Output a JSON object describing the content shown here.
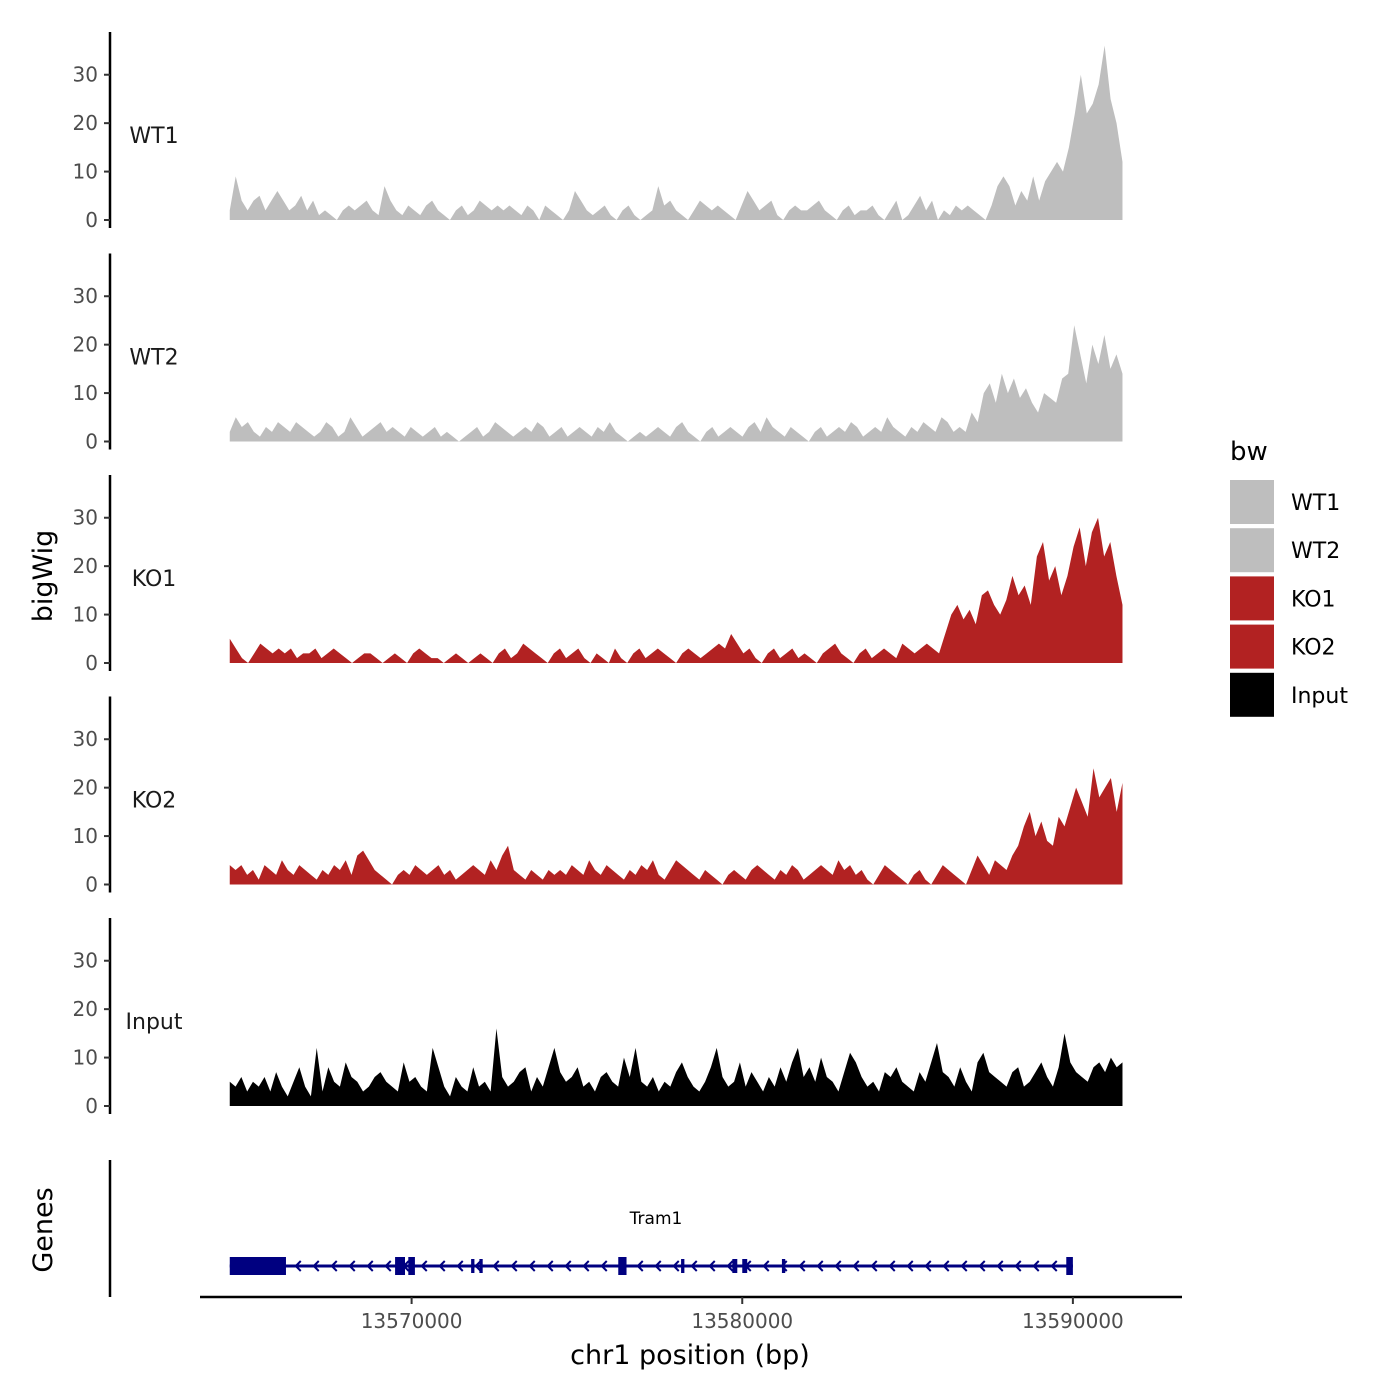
{
  "chart_data": {
    "type": "area",
    "ylabel": "bigWig",
    "xlabel": "chr1 position (bp)",
    "x_range": [
      13564500,
      13591500
    ],
    "xlim": [
      13563600,
      13593300
    ],
    "x_ticks": [
      13570000,
      13580000,
      13590000
    ],
    "x_tick_labels": [
      "13570000",
      "13580000",
      "13590000"
    ],
    "ylim": [
      0,
      38
    ],
    "y_ticks": [
      0,
      10,
      20,
      30
    ],
    "y_tick_labels": [
      "0",
      "10",
      "20",
      "30"
    ],
    "tracks": [
      {
        "name": "WT1",
        "color": "#bebebe",
        "values": [
          2,
          9,
          4,
          2,
          4,
          5,
          2,
          4,
          6,
          4,
          2,
          3,
          5,
          2,
          4,
          1,
          2,
          1,
          0,
          2,
          3,
          2,
          3,
          4,
          2,
          1,
          7,
          4,
          2,
          1,
          3,
          2,
          1,
          3,
          4,
          2,
          1,
          0,
          2,
          3,
          1,
          2,
          4,
          3,
          2,
          3,
          2,
          3,
          2,
          1,
          3,
          2,
          0,
          3,
          2,
          1,
          0,
          2,
          6,
          4,
          2,
          1,
          2,
          3,
          1,
          0,
          2,
          3,
          1,
          0,
          1,
          2,
          7,
          3,
          4,
          2,
          1,
          0,
          2,
          4,
          3,
          2,
          3,
          2,
          1,
          0,
          3,
          6,
          4,
          2,
          3,
          4,
          1,
          0,
          2,
          3,
          2,
          2,
          3,
          4,
          2,
          1,
          0,
          2,
          3,
          1,
          2,
          2,
          3,
          1,
          0,
          2,
          4,
          0,
          1,
          3,
          5,
          2,
          4,
          0,
          2,
          1,
          3,
          2,
          3,
          2,
          1,
          0,
          3,
          7,
          9,
          7,
          3,
          6,
          4,
          9,
          4,
          8,
          10,
          12,
          10,
          15,
          22,
          30,
          22,
          24,
          28,
          36,
          25,
          20,
          12
        ]
      },
      {
        "name": "WT2",
        "color": "#bebebe",
        "values": [
          2,
          5,
          3,
          4,
          2,
          1,
          3,
          2,
          4,
          3,
          2,
          4,
          3,
          2,
          1,
          2,
          4,
          3,
          1,
          2,
          5,
          3,
          1,
          2,
          3,
          4,
          2,
          3,
          2,
          1,
          3,
          2,
          1,
          2,
          3,
          1,
          2,
          1,
          0,
          1,
          2,
          3,
          1,
          2,
          4,
          3,
          2,
          1,
          2,
          3,
          2,
          4,
          3,
          1,
          2,
          3,
          1,
          2,
          3,
          2,
          1,
          3,
          2,
          4,
          2,
          1,
          0,
          1,
          2,
          1,
          2,
          3,
          2,
          1,
          3,
          4,
          2,
          1,
          0,
          2,
          3,
          1,
          2,
          3,
          2,
          1,
          3,
          4,
          2,
          5,
          3,
          2,
          1,
          3,
          2,
          1,
          0,
          2,
          3,
          1,
          2,
          3,
          2,
          4,
          3,
          1,
          2,
          3,
          2,
          5,
          3,
          2,
          1,
          3,
          2,
          4,
          3,
          2,
          5,
          4,
          2,
          3,
          2,
          6,
          4,
          10,
          12,
          8,
          14,
          10,
          13,
          9,
          11,
          8,
          6,
          10,
          9,
          8,
          13,
          14,
          24,
          18,
          12,
          20,
          16,
          22,
          15,
          18,
          14
        ]
      },
      {
        "name": "KO1",
        "color": "#b22222",
        "values": [
          5,
          3,
          1,
          0,
          2,
          4,
          3,
          2,
          3,
          2,
          3,
          1,
          2,
          2,
          3,
          1,
          2,
          3,
          2,
          1,
          0,
          1,
          2,
          2,
          1,
          0,
          1,
          2,
          1,
          0,
          2,
          3,
          2,
          1,
          1,
          0,
          1,
          2,
          1,
          0,
          1,
          2,
          1,
          0,
          2,
          3,
          1,
          2,
          4,
          3,
          2,
          1,
          0,
          2,
          3,
          1,
          2,
          3,
          1,
          0,
          2,
          1,
          0,
          3,
          1,
          0,
          2,
          3,
          1,
          2,
          3,
          2,
          1,
          0,
          2,
          3,
          2,
          1,
          2,
          3,
          4,
          3,
          6,
          4,
          2,
          3,
          1,
          0,
          2,
          3,
          1,
          2,
          3,
          1,
          2,
          1,
          0,
          2,
          3,
          4,
          2,
          1,
          0,
          2,
          3,
          1,
          2,
          3,
          2,
          1,
          4,
          3,
          2,
          3,
          4,
          3,
          2,
          6,
          10,
          12,
          9,
          11,
          8,
          14,
          15,
          12,
          10,
          13,
          18,
          14,
          16,
          12,
          22,
          25,
          17,
          20,
          14,
          18,
          24,
          28,
          20,
          27,
          30,
          22,
          25,
          18,
          12
        ]
      },
      {
        "name": "KO2",
        "color": "#b22222",
        "values": [
          4,
          3,
          4,
          2,
          3,
          1,
          4,
          3,
          2,
          5,
          3,
          2,
          4,
          3,
          2,
          1,
          3,
          2,
          4,
          3,
          5,
          2,
          6,
          7,
          5,
          3,
          2,
          1,
          0,
          2,
          3,
          2,
          4,
          3,
          2,
          3,
          4,
          2,
          3,
          1,
          2,
          3,
          4,
          3,
          2,
          5,
          3,
          6,
          8,
          3,
          2,
          1,
          3,
          2,
          1,
          3,
          2,
          3,
          2,
          4,
          3,
          2,
          5,
          3,
          2,
          4,
          3,
          2,
          1,
          3,
          2,
          4,
          3,
          5,
          2,
          1,
          3,
          5,
          4,
          3,
          2,
          1,
          3,
          2,
          1,
          0,
          2,
          3,
          2,
          1,
          3,
          4,
          3,
          2,
          1,
          3,
          2,
          4,
          3,
          1,
          2,
          3,
          4,
          3,
          2,
          5,
          3,
          4,
          2,
          3,
          1,
          0,
          2,
          4,
          3,
          2,
          1,
          0,
          2,
          3,
          1,
          0,
          2,
          4,
          3,
          2,
          1,
          0,
          3,
          6,
          4,
          2,
          5,
          4,
          3,
          6,
          8,
          12,
          15,
          10,
          13,
          9,
          8,
          14,
          12,
          16,
          20,
          17,
          14,
          24,
          18,
          20,
          22,
          15,
          21
        ]
      },
      {
        "name": "Input",
        "color": "#000000",
        "values": [
          5,
          4,
          6,
          3,
          5,
          4,
          6,
          3,
          7,
          4,
          2,
          5,
          8,
          4,
          2,
          12,
          3,
          8,
          5,
          4,
          9,
          6,
          5,
          3,
          4,
          6,
          7,
          5,
          4,
          3,
          9,
          5,
          6,
          4,
          3,
          12,
          8,
          4,
          2,
          6,
          4,
          3,
          8,
          4,
          5,
          3,
          16,
          6,
          4,
          5,
          7,
          8,
          3,
          6,
          4,
          8,
          12,
          7,
          5,
          6,
          8,
          4,
          5,
          3,
          6,
          7,
          5,
          4,
          10,
          6,
          12,
          5,
          4,
          6,
          3,
          5,
          4,
          7,
          9,
          6,
          4,
          3,
          5,
          8,
          12,
          6,
          4,
          5,
          9,
          4,
          7,
          5,
          3,
          6,
          4,
          8,
          5,
          9,
          12,
          6,
          8,
          5,
          10,
          6,
          5,
          3,
          7,
          11,
          9,
          6,
          4,
          5,
          3,
          7,
          6,
          8,
          5,
          4,
          3,
          7,
          5,
          9,
          13,
          7,
          6,
          4,
          8,
          5,
          3,
          9,
          11,
          7,
          6,
          5,
          4,
          7,
          8,
          4,
          5,
          7,
          9,
          6,
          4,
          8,
          15,
          9,
          7,
          6,
          5,
          8,
          9,
          7,
          10,
          8,
          9
        ]
      }
    ],
    "gene": {
      "name": "Tram1",
      "color": "#000080",
      "start": 13564500,
      "end": 13590000,
      "strand": "-",
      "exons": [
        [
          13564500,
          13566200
        ],
        [
          13569500,
          13569800
        ],
        [
          13569900,
          13570100
        ],
        [
          13571800,
          13571900
        ],
        [
          13572050,
          13572150
        ],
        [
          13576250,
          13576500
        ],
        [
          13578150,
          13578250
        ],
        [
          13579700,
          13579850
        ],
        [
          13580000,
          13580150
        ],
        [
          13581200,
          13581300
        ],
        [
          13589800,
          13590000
        ]
      ]
    },
    "legend": {
      "title": "bw",
      "entries": [
        {
          "label": "WT1",
          "color": "#bebebe"
        },
        {
          "label": "WT2",
          "color": "#bebebe"
        },
        {
          "label": "KO1",
          "color": "#b22222"
        },
        {
          "label": "KO2",
          "color": "#b22222"
        },
        {
          "label": "Input",
          "color": "#000000"
        }
      ]
    },
    "genes_panel_label": "Genes"
  }
}
